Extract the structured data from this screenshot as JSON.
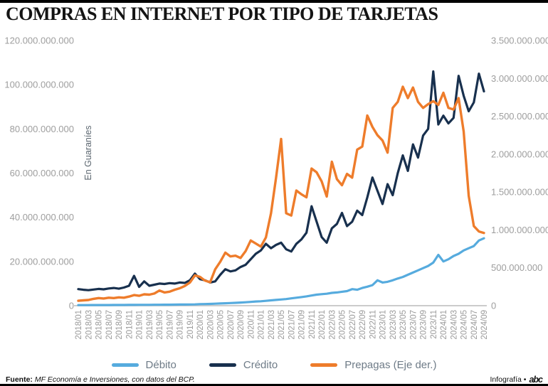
{
  "page": {
    "title": "COMPRAS EN INTERNET POR TIPO DE TARJETAS"
  },
  "chart_data": {
    "type": "line",
    "title": "COMPRAS EN INTERNET POR TIPO DE TARJETAS",
    "x_start": "2018/01",
    "x_end": "2024/09",
    "frequency": "monthly",
    "grid": false,
    "legend_position": "bottom",
    "y_left": {
      "label": "En Guaraníes",
      "max": 120000000000,
      "min": 0,
      "tick_labels": [
        "120.000.000.000",
        "100.000.000.000",
        "80.000.000.000",
        "60.000.000.000",
        "40.000.000.000",
        "20.000.000.000",
        "0"
      ]
    },
    "y_right": {
      "label": "Eje derecho",
      "max": 3500000000,
      "min": 0,
      "tick_labels": [
        "3.500.000.000",
        "3.000.000.000",
        "2.500.000.000",
        "2.000.000.000",
        "1.500.000.000",
        "1.000.000.000",
        "500.000.000",
        "0"
      ]
    },
    "x_tick_labels": [
      "2018/01",
      "2018/03",
      "2018/05",
      "2018/07",
      "2018/09",
      "2018/11",
      "2019/01",
      "2019/03",
      "2019/05",
      "2019/07",
      "2019/09",
      "2019/11",
      "2020/01",
      "2020/03",
      "2020/05",
      "2020/07",
      "2020/09",
      "2020/11",
      "2021/01",
      "2021/03",
      "2021/05",
      "2021/07",
      "2021/09",
      "2021/11",
      "2022/01",
      "2022/03",
      "2022/05",
      "2022/07",
      "2022/09",
      "2022/11",
      "2023/01",
      "2023/03",
      "2023/05",
      "2023/07",
      "2023/09",
      "2023/11",
      "2024/01",
      "2024/03",
      "2024/05",
      "2024/07",
      "2024/09"
    ],
    "series": [
      {
        "name": "Débito",
        "axis": "left",
        "color": "#56ABDE",
        "width": 3.2,
        "values": [
          250000000,
          260000000,
          270000000,
          280000000,
          290000000,
          300000000,
          300000000,
          310000000,
          320000000,
          330000000,
          340000000,
          360000000,
          380000000,
          390000000,
          400000000,
          420000000,
          430000000,
          450000000,
          460000000,
          480000000,
          500000000,
          520000000,
          540000000,
          580000000,
          700000000,
          750000000,
          800000000,
          900000000,
          1000000000,
          1100000000,
          1200000000,
          1300000000,
          1400000000,
          1550000000,
          1700000000,
          1900000000,
          2000000000,
          2200000000,
          2400000000,
          2600000000,
          2800000000,
          3000000000,
          3300000000,
          3600000000,
          3900000000,
          4200000000,
          4600000000,
          5000000000,
          5200000000,
          5400000000,
          5800000000,
          6000000000,
          6300000000,
          6600000000,
          7500000000,
          7200000000,
          8000000000,
          8600000000,
          9300000000,
          11500000000,
          10500000000,
          10800000000,
          11500000000,
          12300000000,
          13000000000,
          14000000000,
          15000000000,
          16000000000,
          17000000000,
          18000000000,
          19500000000,
          23000000000,
          20000000000,
          21000000000,
          22500000000,
          23500000000,
          25000000000,
          26000000000,
          27000000000,
          29500000000,
          30500000000
        ]
      },
      {
        "name": "Crédito",
        "axis": "left",
        "color": "#18304E",
        "width": 3.2,
        "values": [
          7500000000,
          7200000000,
          7000000000,
          7300000000,
          7600000000,
          7400000000,
          7800000000,
          8000000000,
          7700000000,
          8200000000,
          9000000000,
          13500000000,
          8500000000,
          11000000000,
          9000000000,
          9500000000,
          10000000000,
          9800000000,
          10200000000,
          10000000000,
          10500000000,
          10300000000,
          11500000000,
          14500000000,
          12000000000,
          11500000000,
          10500000000,
          11000000000,
          14000000000,
          16500000000,
          15500000000,
          16000000000,
          17500000000,
          18500000000,
          21000000000,
          23500000000,
          25000000000,
          28000000000,
          26000000000,
          27500000000,
          28500000000,
          25500000000,
          24500000000,
          28000000000,
          30000000000,
          33000000000,
          45000000000,
          38000000000,
          31000000000,
          28500000000,
          35000000000,
          37000000000,
          42000000000,
          36000000000,
          38000000000,
          43000000000,
          41000000000,
          49000000000,
          58000000000,
          52000000000,
          46000000000,
          55000000000,
          50000000000,
          60000000000,
          68000000000,
          61000000000,
          73000000000,
          67000000000,
          77000000000,
          80000000000,
          106000000000,
          82000000000,
          86000000000,
          82500000000,
          85000000000,
          104000000000,
          95000000000,
          88000000000,
          92000000000,
          105000000000,
          97000000000
        ]
      },
      {
        "name": "Prepagas (Eje der.)",
        "axis": "right",
        "color": "#EE7C2B",
        "width": 3.4,
        "values": [
          65000000,
          70000000,
          75000000,
          90000000,
          100000000,
          95000000,
          105000000,
          100000000,
          110000000,
          105000000,
          120000000,
          140000000,
          130000000,
          150000000,
          145000000,
          160000000,
          200000000,
          175000000,
          185000000,
          210000000,
          230000000,
          260000000,
          305000000,
          400000000,
          380000000,
          330000000,
          310000000,
          480000000,
          580000000,
          700000000,
          650000000,
          660000000,
          630000000,
          720000000,
          860000000,
          820000000,
          780000000,
          900000000,
          1220000000,
          1690000000,
          2200000000,
          1220000000,
          1190000000,
          1520000000,
          1470000000,
          1430000000,
          1810000000,
          1760000000,
          1640000000,
          1440000000,
          1900000000,
          1670000000,
          1590000000,
          1740000000,
          1690000000,
          2060000000,
          2100000000,
          2510000000,
          2360000000,
          2250000000,
          2180000000,
          2020000000,
          2610000000,
          2690000000,
          2890000000,
          2740000000,
          2880000000,
          2690000000,
          2610000000,
          2660000000,
          2700000000,
          2650000000,
          2810000000,
          2610000000,
          2590000000,
          2740000000,
          2300000000,
          1450000000,
          1050000000,
          980000000,
          960000000
        ]
      }
    ]
  },
  "legend": {
    "items": [
      {
        "label": "Débito"
      },
      {
        "label": "Crédito"
      },
      {
        "label": "Prepagas (Eje der.)"
      }
    ]
  },
  "footer": {
    "source_label": "Fuente:",
    "source_text": "MF Economía e Inversiones, con datos del BCP.",
    "credit": "Infografía •",
    "logo": "abc"
  }
}
